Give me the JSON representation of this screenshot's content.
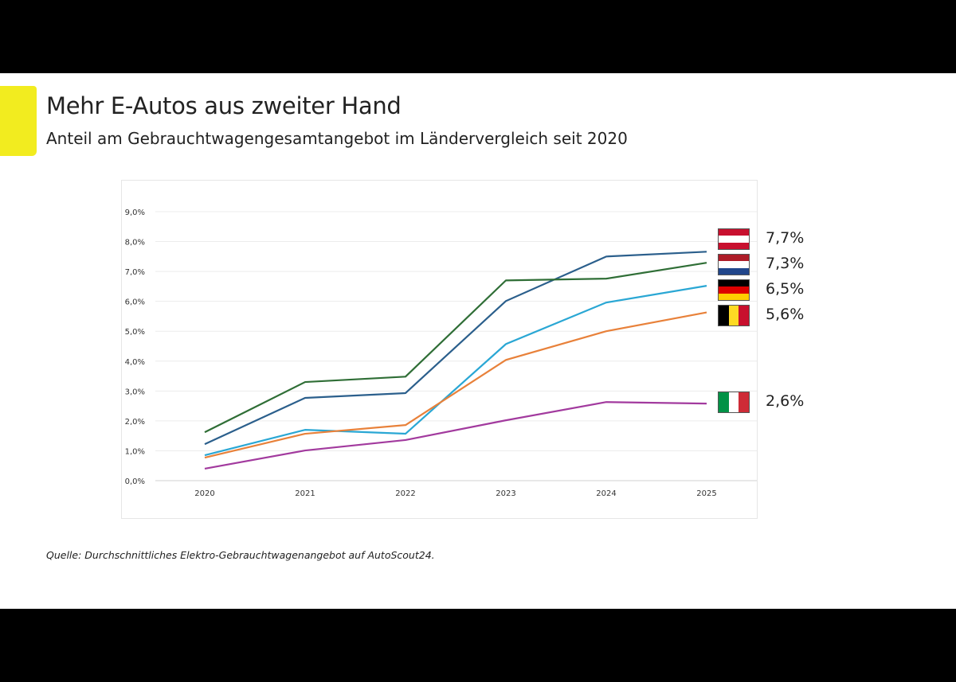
{
  "header": {
    "title": "Mehr E-Autos aus zweiter Hand",
    "subtitle": "Anteil am Gebrauchtwagengesamtangebot im Ländervergleich seit 2020"
  },
  "source": "Quelle: Durchschnittliches Elektro-Gebrauchtwagenangebot auf AutoScout24.",
  "accent_color": "#f2ec1f",
  "chart_data": {
    "type": "line",
    "title": "",
    "xlabel": "",
    "ylabel": "",
    "x": [
      "2020",
      "2021",
      "2022",
      "2023",
      "2024",
      "2025"
    ],
    "ylim": [
      0,
      9
    ],
    "yticks": [
      "0,0%",
      "1,0%",
      "2,0%",
      "3,0%",
      "4,0%",
      "5,0%",
      "6,0%",
      "7,0%",
      "8,0%",
      "9,0%"
    ],
    "grid": true,
    "series": [
      {
        "flag": "austria-flag",
        "color": "#2b5f8c",
        "end_label": "7,7%",
        "values": [
          1.22,
          2.77,
          2.93,
          6.01,
          7.5,
          7.66
        ],
        "flag_colors": [
          "#c8102e",
          "#ffffff",
          "#c8102e"
        ],
        "flag_dir": "h"
      },
      {
        "flag": "netherlands-flag",
        "color": "#2f6e36",
        "end_label": "7,3%",
        "values": [
          1.62,
          3.3,
          3.48,
          6.7,
          6.76,
          7.29
        ],
        "flag_colors": [
          "#ae1c28",
          "#ffffff",
          "#21468b"
        ],
        "flag_dir": "h"
      },
      {
        "flag": "germany-flag",
        "color": "#2aa7d4",
        "end_label": "6,5%",
        "values": [
          0.85,
          1.7,
          1.57,
          4.57,
          5.96,
          6.52
        ],
        "flag_colors": [
          "#000000",
          "#dd0000",
          "#ffce00"
        ],
        "flag_dir": "h"
      },
      {
        "flag": "belgium-flag",
        "color": "#e8813a",
        "end_label": "5,6%",
        "values": [
          0.77,
          1.57,
          1.86,
          4.04,
          5.0,
          5.63
        ],
        "flag_colors": [
          "#000000",
          "#fdda24",
          "#c8102e"
        ],
        "flag_dir": "v"
      },
      {
        "flag": "italy-flag",
        "color": "#a23a9e",
        "end_label": "2,6%",
        "values": [
          0.4,
          1.01,
          1.36,
          2.02,
          2.63,
          2.58
        ],
        "flag_colors": [
          "#009246",
          "#ffffff",
          "#ce2b37"
        ],
        "flag_dir": "v"
      }
    ]
  }
}
